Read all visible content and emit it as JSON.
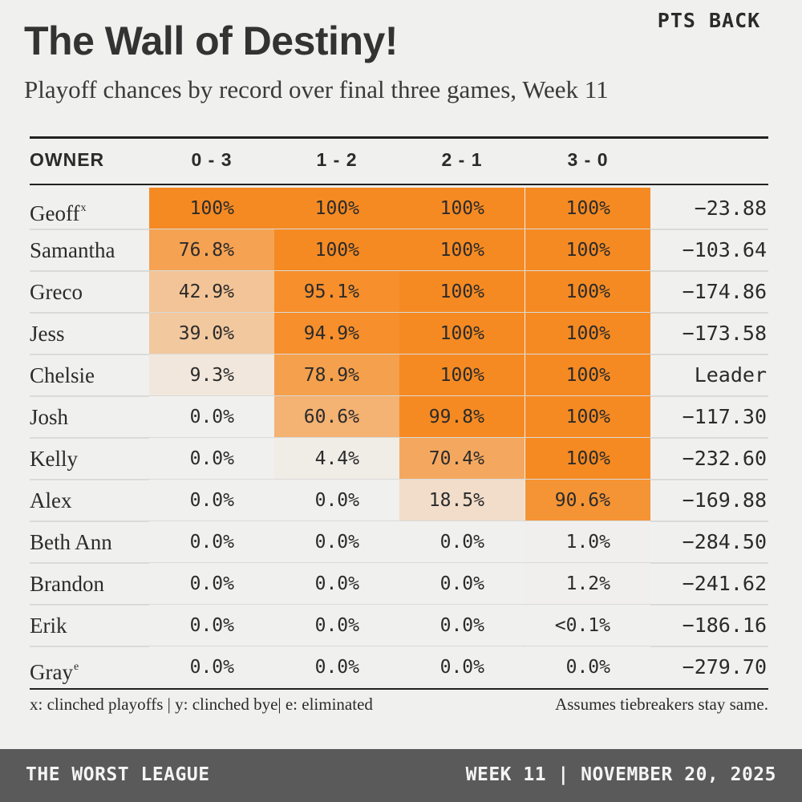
{
  "header": {
    "title": "The Wall of Destiny!",
    "subtitle": "Playoff chances by record over final three games, Week 11"
  },
  "chart_data": {
    "type": "table",
    "title": "The Wall of Destiny!",
    "subtitle": "Playoff chances by record over final three games, Week 11",
    "columns": [
      "OWNER",
      "0 - 3",
      "1 - 2",
      "2 - 1",
      "3 - 0",
      "PTS BACK"
    ],
    "rows": [
      {
        "owner": "Geoff",
        "mark": "x",
        "values": [
          "100%",
          "100%",
          "100%",
          "100%"
        ],
        "pct": [
          100,
          100,
          100,
          100
        ],
        "pts_back": "−23.88"
      },
      {
        "owner": "Samantha",
        "mark": "",
        "values": [
          "76.8%",
          "100%",
          "100%",
          "100%"
        ],
        "pct": [
          76.8,
          100,
          100,
          100
        ],
        "pts_back": "−103.64"
      },
      {
        "owner": "Greco",
        "mark": "",
        "values": [
          "42.9%",
          "95.1%",
          "100%",
          "100%"
        ],
        "pct": [
          42.9,
          95.1,
          100,
          100
        ],
        "pts_back": "−174.86"
      },
      {
        "owner": "Jess",
        "mark": "",
        "values": [
          "39.0%",
          "94.9%",
          "100%",
          "100%"
        ],
        "pct": [
          39.0,
          94.9,
          100,
          100
        ],
        "pts_back": "−173.58"
      },
      {
        "owner": "Chelsie",
        "mark": "",
        "values": [
          "9.3%",
          "78.9%",
          "100%",
          "100%"
        ],
        "pct": [
          9.3,
          78.9,
          100,
          100
        ],
        "pts_back": "Leader"
      },
      {
        "owner": "Josh",
        "mark": "",
        "values": [
          "0.0%",
          "60.6%",
          "99.8%",
          "100%"
        ],
        "pct": [
          0,
          60.6,
          99.8,
          100
        ],
        "pts_back": "−117.30"
      },
      {
        "owner": "Kelly",
        "mark": "",
        "values": [
          "0.0%",
          "4.4%",
          "70.4%",
          "100%"
        ],
        "pct": [
          0,
          4.4,
          70.4,
          100
        ],
        "pts_back": "−232.60"
      },
      {
        "owner": "Alex",
        "mark": "",
        "values": [
          "0.0%",
          "0.0%",
          "18.5%",
          "90.6%"
        ],
        "pct": [
          0,
          0,
          18.5,
          90.6
        ],
        "pts_back": "−169.88"
      },
      {
        "owner": "Beth Ann",
        "mark": "",
        "values": [
          "0.0%",
          "0.0%",
          "0.0%",
          "1.0%"
        ],
        "pct": [
          0,
          0,
          0,
          1.0
        ],
        "pts_back": "−284.50"
      },
      {
        "owner": "Brandon",
        "mark": "",
        "values": [
          "0.0%",
          "0.0%",
          "0.0%",
          "1.2%"
        ],
        "pct": [
          0,
          0,
          0,
          1.2
        ],
        "pts_back": "−241.62"
      },
      {
        "owner": "Erik",
        "mark": "",
        "values": [
          "0.0%",
          "0.0%",
          "0.0%",
          "<0.1%"
        ],
        "pct": [
          0,
          0,
          0,
          0.05
        ],
        "pts_back": "−186.16"
      },
      {
        "owner": "Gray",
        "mark": "e",
        "values": [
          "0.0%",
          "0.0%",
          "0.0%",
          "0.0%"
        ],
        "pct": [
          0,
          0,
          0,
          0
        ],
        "pts_back": "−279.70"
      }
    ],
    "colors": {
      "high": "#f68a22",
      "low": "#f0f0ef"
    }
  },
  "footer": {
    "legend": "x: clinched playoffs | y: clinched bye| e: eliminated",
    "note": "Assumes tiebreakers stay same."
  },
  "banner": {
    "league": "THE WORST LEAGUE",
    "date": "WEEK 11 | NOVEMBER 20, 2025"
  }
}
